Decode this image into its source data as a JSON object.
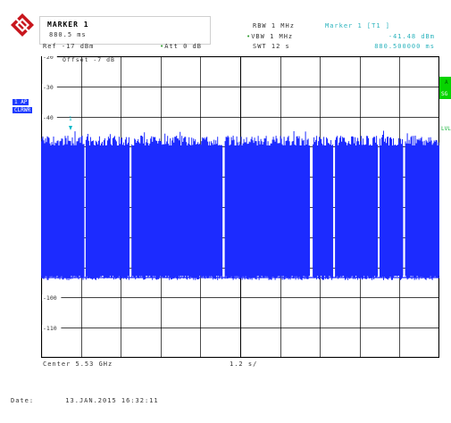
{
  "header": {
    "marker_box": {
      "title": "MARKER 1",
      "time": "880.5 ms"
    },
    "ref": "Ref -17 dBm",
    "att": "Att  0 dB",
    "rbw": "RBW 1 MHz",
    "vbw": "VBW 1 MHz",
    "swt": "SWT 12 s",
    "marker_readout": {
      "label": "Marker 1 [T1 ]",
      "level": "-41.48 dBm",
      "time": "880.500000 ms"
    }
  },
  "plot": {
    "offset": "Offset -7 dB",
    "y_tick_labels": [
      "-20",
      "-30",
      "-40",
      "-100",
      "-110"
    ],
    "marker_index": "1",
    "center": "Center 5.53 GHz",
    "span_per_div": "1.2 s/",
    "trace_color": "#1c2bff",
    "grid_color": "#000000",
    "trace_segments": [
      {
        "start": 0.0,
        "end": 0.108
      },
      {
        "start": 0.113,
        "end": 0.222
      },
      {
        "start": 0.228,
        "end": 0.455
      },
      {
        "start": 0.462,
        "end": 0.675
      },
      {
        "start": 0.683,
        "end": 0.733
      },
      {
        "start": 0.739,
        "end": 0.845
      },
      {
        "start": 0.851,
        "end": 0.909
      },
      {
        "start": 0.915,
        "end": 1.0
      }
    ]
  },
  "left_panel": {
    "trace_label": "1 AP",
    "mode_label": "CLRWR"
  },
  "right_panel": {
    "a_label": "A",
    "sg_label": "SG",
    "lvl_label": "LVL"
  },
  "footer": {
    "date_label": "Date:",
    "date_value": "13.JAN.2015  16:32:11"
  },
  "colors": {
    "logo_red": "#c8161d",
    "right_bar": "#07d400",
    "marker_cyan": "#00b8c8"
  }
}
